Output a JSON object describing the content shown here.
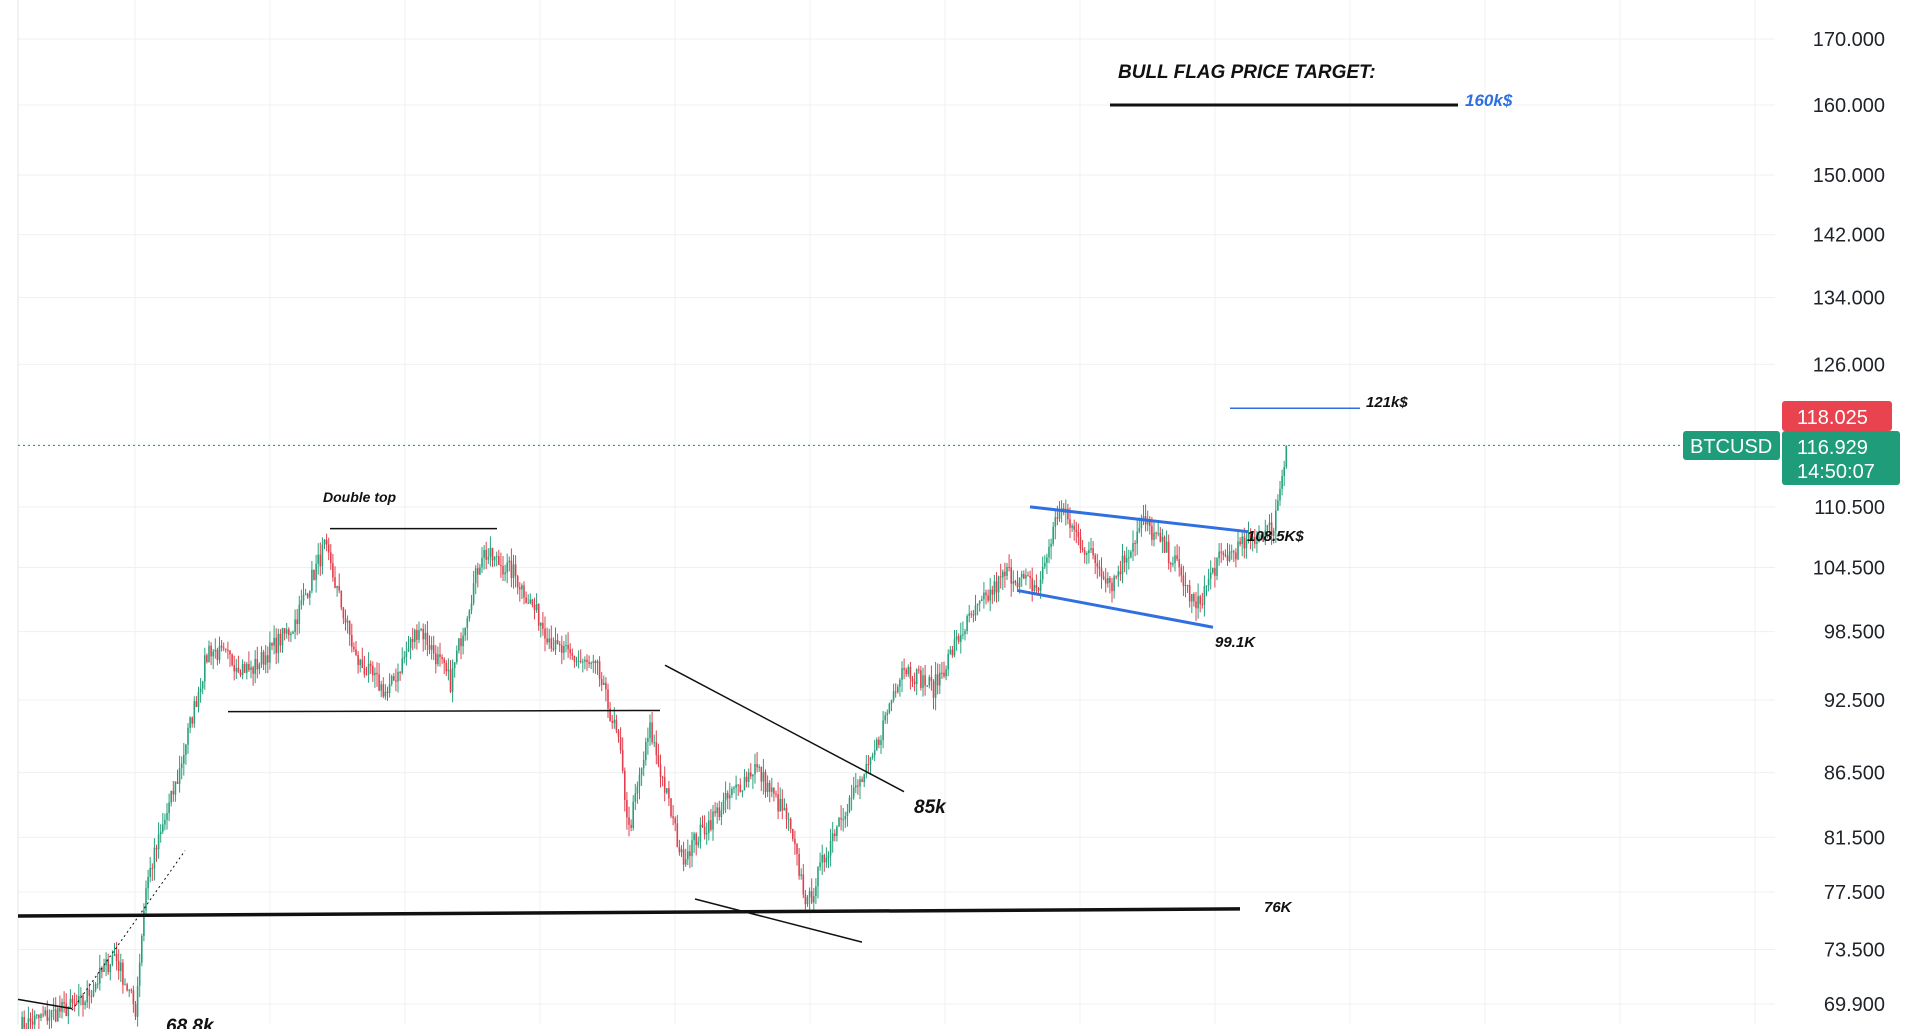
{
  "chart_data": {
    "type": "candlestick",
    "symbol": "BTCUSD",
    "y_scale": "log",
    "ylim": [
      68.5,
      176
    ],
    "grid": true,
    "y_ticks": [
      "170.000",
      "160.000",
      "150.000",
      "142.000",
      "134.000",
      "126.000",
      "110.500",
      "104.500",
      "98.500",
      "92.500",
      "86.500",
      "81.500",
      "77.500",
      "73.500",
      "69.900"
    ],
    "y_tick_values": [
      170,
      160,
      150,
      142,
      134,
      126,
      110.5,
      104.5,
      98.5,
      92.5,
      86.5,
      81.5,
      77.5,
      73.5,
      69.9
    ],
    "current_price": 116.929,
    "high_price": 118.025,
    "countdown": "14:50:07",
    "colors": {
      "up": "#26a17b",
      "down": "#e0404d",
      "trendline_blue": "#2f6fe0",
      "price_badge": "#1f9c7a",
      "high_badge": "#e8434f"
    },
    "path_anchors": [
      {
        "i": 0,
        "p": 68.5
      },
      {
        "i": 30,
        "p": 70
      },
      {
        "i": 45,
        "p": 73.2
      },
      {
        "i": 55,
        "p": 69.5
      },
      {
        "i": 60,
        "p": 78
      },
      {
        "i": 75,
        "p": 86
      },
      {
        "i": 90,
        "p": 97
      },
      {
        "i": 110,
        "p": 95
      },
      {
        "i": 130,
        "p": 99
      },
      {
        "i": 145,
        "p": 106.5
      },
      {
        "i": 160,
        "p": 96
      },
      {
        "i": 175,
        "p": 93
      },
      {
        "i": 190,
        "p": 99
      },
      {
        "i": 205,
        "p": 94
      },
      {
        "i": 220,
        "p": 106
      },
      {
        "i": 235,
        "p": 104
      },
      {
        "i": 255,
        "p": 97
      },
      {
        "i": 275,
        "p": 95
      },
      {
        "i": 285,
        "p": 89
      },
      {
        "i": 290,
        "p": 82
      },
      {
        "i": 300,
        "p": 90
      },
      {
        "i": 315,
        "p": 80
      },
      {
        "i": 330,
        "p": 83
      },
      {
        "i": 350,
        "p": 87
      },
      {
        "i": 365,
        "p": 83
      },
      {
        "i": 375,
        "p": 76.5
      },
      {
        "i": 390,
        "p": 83
      },
      {
        "i": 405,
        "p": 87
      },
      {
        "i": 420,
        "p": 95.5
      },
      {
        "i": 435,
        "p": 93.5
      },
      {
        "i": 450,
        "p": 99
      },
      {
        "i": 470,
        "p": 104
      },
      {
        "i": 485,
        "p": 102.5
      },
      {
        "i": 495,
        "p": 110.5
      },
      {
        "i": 505,
        "p": 107
      },
      {
        "i": 520,
        "p": 103
      },
      {
        "i": 535,
        "p": 109
      },
      {
        "i": 550,
        "p": 105
      },
      {
        "i": 560,
        "p": 100.5
      },
      {
        "i": 570,
        "p": 105
      },
      {
        "i": 585,
        "p": 107
      },
      {
        "i": 597,
        "p": 108.5
      },
      {
        "i": 603,
        "p": 116.929
      }
    ],
    "levels": [
      {
        "label": "Double top",
        "price": 108.3
      },
      {
        "label": "160k$",
        "price": 160
      },
      {
        "label": "121k$",
        "price": 121
      },
      {
        "label": "108.5K$",
        "price": 108.5
      },
      {
        "label": "99.1K",
        "price": 99.1
      },
      {
        "label": "85k",
        "price": 85
      },
      {
        "label": "76K",
        "price": 76
      },
      {
        "label": "68.8k",
        "price": 68.8
      }
    ],
    "annotations": [
      "BULL FLAG PRICE TARGET:",
      "Double top",
      "160k$",
      "121k$",
      "108.5K$",
      "99.1K",
      "85k",
      "76K",
      "68.8k"
    ]
  }
}
